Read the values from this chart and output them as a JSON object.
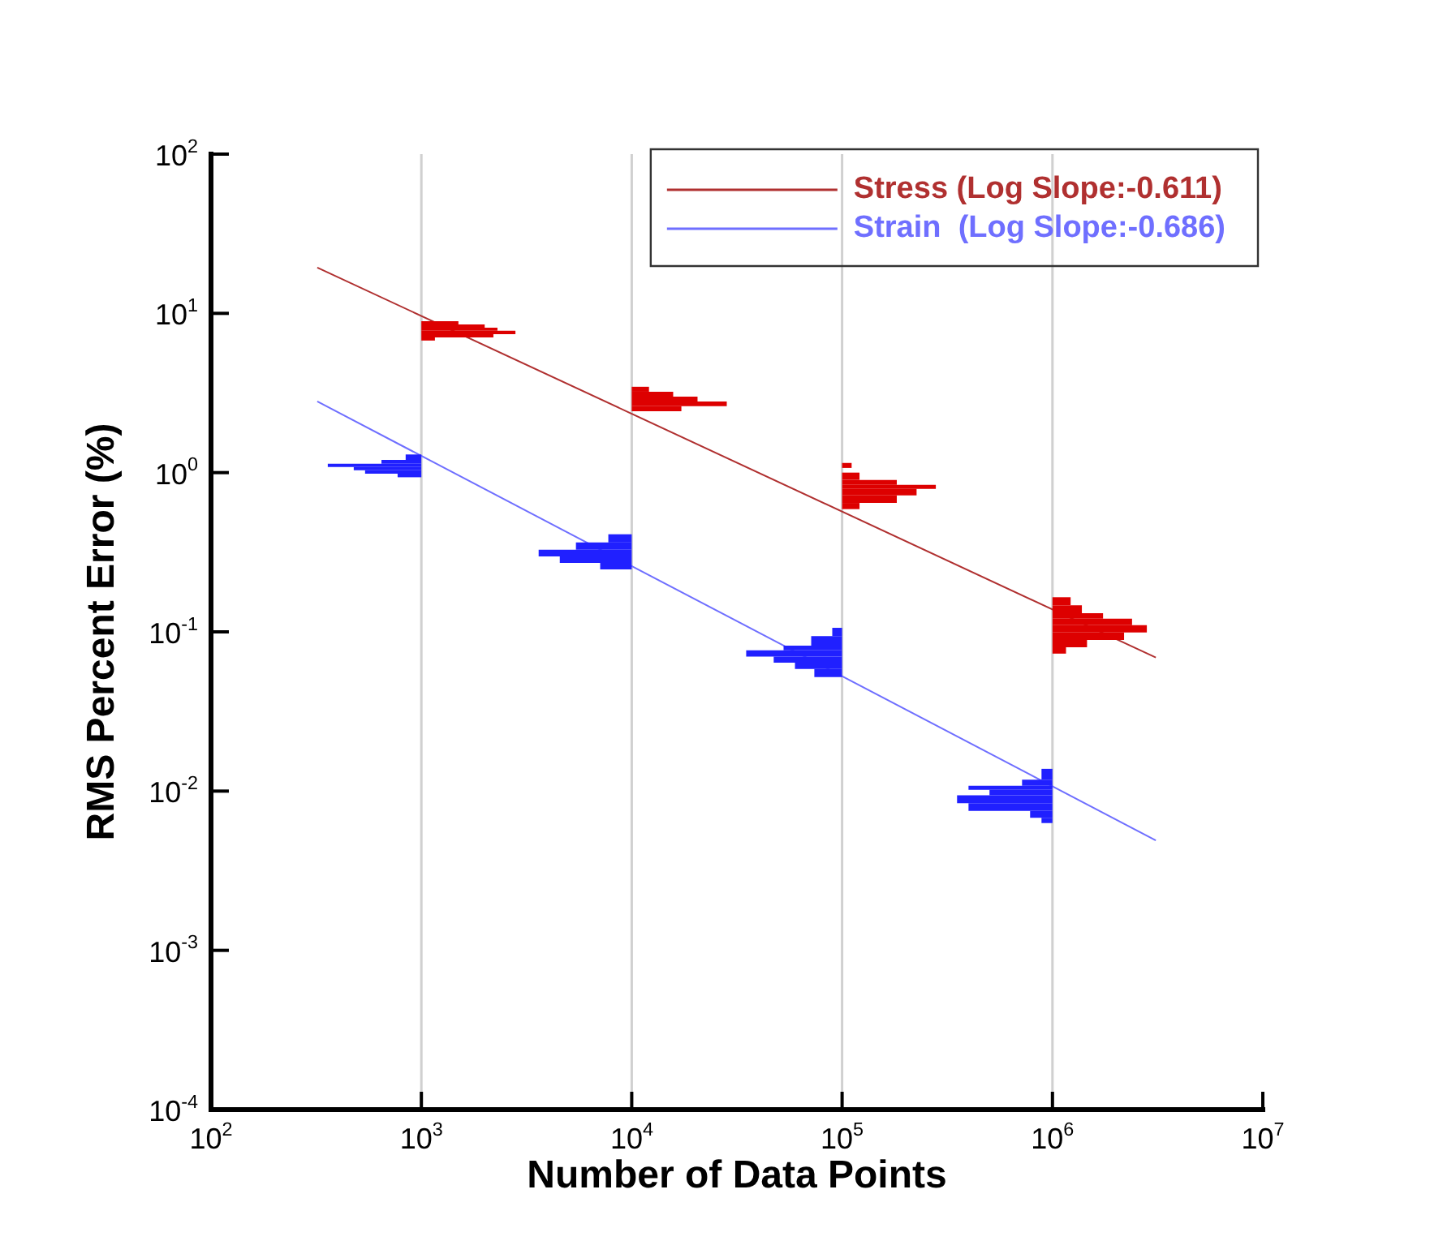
{
  "chart_data": {
    "type": "histogram",
    "orientation": "horizontal",
    "xlabel": "Number of Data Points",
    "ylabel": "RMS Percent Error (%)",
    "log": "xy",
    "grid": "x",
    "legend": "top right",
    "marker": "none",
    "xlim": [
      100,
      10000000
    ],
    "ylim": [
      0.0001,
      100
    ],
    "xticks": [
      {
        "value": 100,
        "label": "10$^{2}$"
      },
      {
        "value": 1000,
        "label": "10$^{3}$"
      },
      {
        "value": 10000,
        "label": "10$^{4}$"
      },
      {
        "value": 100000,
        "label": "10$^{5}$"
      },
      {
        "value": 1000000,
        "label": "10$^{6}$"
      },
      {
        "value": 10000000,
        "label": "10$^{7}$"
      }
    ],
    "yticks": [
      {
        "value": 0.0001,
        "label": "10$^{-4}$"
      },
      {
        "value": 0.001,
        "label": "10$^{-3}$"
      },
      {
        "value": 0.01,
        "label": "10$^{-2}$"
      },
      {
        "value": 0.1,
        "label": "10$^{-1}$"
      },
      {
        "value": 1,
        "label": "10$^{0}$"
      },
      {
        "value": 10,
        "label": "10$^{1}$"
      },
      {
        "value": 100,
        "label": "10$^{2}$"
      }
    ],
    "series": [
      {
        "type": "line",
        "name": "Stress (Log Slope:-0.611)",
        "color": "#b03030",
        "x": [
          19.4,
          0.069
        ],
        "values": [
          320,
          3100000
        ]
      },
      {
        "type": "line",
        "name": "Strain  (Log Slope:-0.686)",
        "color": "#6f6fff",
        "x": [
          2.8,
          0.0049
        ],
        "values": [
          320,
          3100000
        ]
      },
      {
        "color": "#dd0000",
        "bins": [
          6.75,
          7.06,
          7.41,
          7.77,
          8.14,
          8.53,
          8.93
        ],
        "base": [
          1000,
          1000,
          1000,
          1000,
          1000,
          1000
        ],
        "values": [
          160,
          1200,
          1800,
          1300,
          1000,
          500
        ]
      },
      {
        "color": "#2020ff",
        "bins": [
          0.935,
          0.985,
          1.035,
          1.085,
          1.135,
          1.2,
          1.3
        ],
        "base": [
          771,
          540,
          477,
          359,
          646,
          842
        ],
        "values": [
          229,
          460,
          523,
          641,
          354,
          158
        ]
      },
      {
        "color": "#dd0000",
        "bins": [
          2.43,
          2.61,
          2.8,
          3.0,
          3.22,
          3.46
        ],
        "base": [
          10000,
          10000,
          10000,
          10000,
          10000
        ],
        "values": [
          7220,
          18300,
          10550,
          5740,
          2080
        ]
      },
      {
        "color": "#2020ff",
        "bins": [
          0.247,
          0.271,
          0.298,
          0.328,
          0.364,
          0.41
        ],
        "base": [
          7080,
          4550,
          3610,
          5430,
          7740
        ],
        "values": [
          2920,
          5450,
          6390,
          4570,
          2260
        ]
      },
      {
        "color": "#dd0000",
        "bins": [
          0.59,
          0.645,
          0.72,
          0.79,
          0.837,
          0.9,
          1.0,
          1.07,
          1.15
        ],
        "base": [
          100000,
          100000,
          100000,
          100000,
          100000,
          100000,
          null,
          100000
        ],
        "values": [
          21000,
          82000,
          126000,
          179000,
          82000,
          21000,
          null,
          11000
        ]
      },
      {
        "color": "#2020ff",
        "bins": [
          0.052,
          0.0585,
          0.064,
          0.07,
          0.0765,
          0.082,
          0.094,
          0.106
        ],
        "base": [
          73800,
          59700,
          47300,
          35000,
          52700,
          71300,
          89800
        ],
        "values": [
          26200,
          40300,
          52700,
          65000,
          47300,
          28700,
          10200
        ]
      },
      {
        "color": "#dd0000",
        "bins": [
          0.073,
          0.08,
          0.089,
          0.099,
          0.11,
          0.121,
          0.131,
          0.147,
          0.165
        ],
        "base": [
          1000000,
          1000000,
          1000000,
          1000000,
          1000000,
          1000000,
          1000000,
          1000000
        ],
        "values": [
          160000,
          460000,
          1190000,
          1810000,
          1390000,
          740000,
          380000,
          220000
        ]
      },
      {
        "color": "#2020ff",
        "bins": [
          0.0063,
          0.0068,
          0.0075,
          0.0084,
          0.0094,
          0.0102,
          0.0108,
          0.0118,
          0.0138
        ],
        "base": [
          887000,
          783000,
          399000,
          352000,
          502000,
          399000,
          717000,
          887000
        ],
        "values": [
          113000,
          217000,
          601000,
          648000,
          498000,
          601000,
          283000,
          113000
        ]
      }
    ]
  }
}
